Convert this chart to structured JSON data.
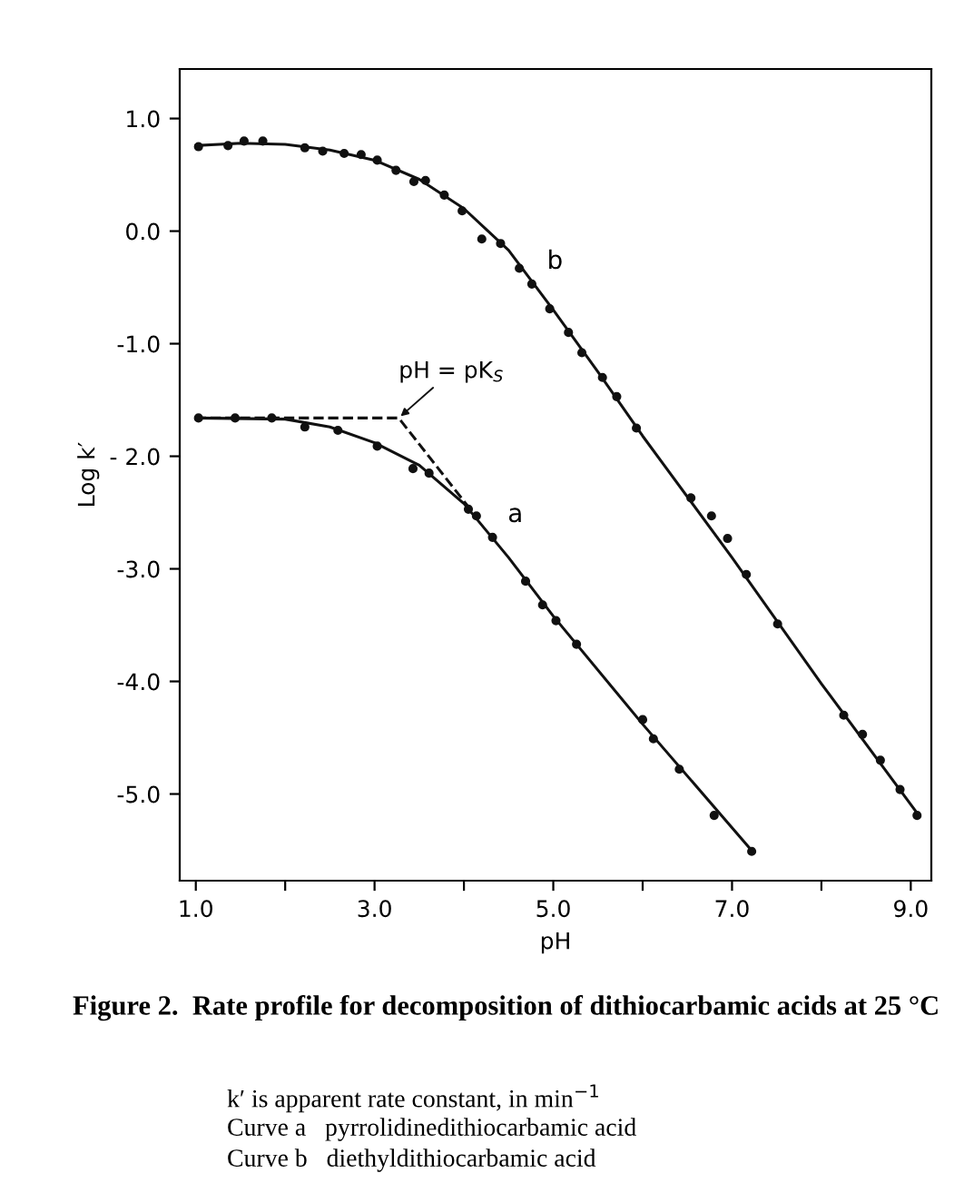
{
  "chart_data": {
    "type": "scatter",
    "title": "Figure 2.  Rate profile for decomposition of dithiocarbamic acids at 25 °C",
    "xlabel": "pH",
    "ylabel": "Log k′",
    "xlim": [
      0.82,
      9.23
    ],
    "ylim": [
      -5.77,
      1.44
    ],
    "xticks": [
      {
        "value": 1,
        "label": "1.0"
      },
      {
        "value": 2,
        "label": null
      },
      {
        "value": 3,
        "label": "3.0"
      },
      {
        "value": 4,
        "label": null
      },
      {
        "value": 5,
        "label": "5.0"
      },
      {
        "value": 6,
        "label": null
      },
      {
        "value": 7,
        "label": "7.0"
      },
      {
        "value": 8,
        "label": null
      },
      {
        "value": 9,
        "label": "9.0"
      }
    ],
    "yticks": [
      {
        "value": 1,
        "label": "1.0"
      },
      {
        "value": 0,
        "label": "0.0"
      },
      {
        "value": -1,
        "label": "-1.0"
      },
      {
        "value": -2,
        "label": "- 2.0"
      },
      {
        "value": -3,
        "label": "-3.0"
      },
      {
        "value": -4,
        "label": "-4.0"
      },
      {
        "value": -5,
        "label": "-5.0"
      }
    ],
    "grid": false,
    "series": [
      {
        "name": "b",
        "marker": "circle",
        "color": "#111111",
        "x": [
          1.03,
          1.36,
          1.54,
          1.75,
          2.22,
          2.42,
          2.66,
          2.85,
          3.03,
          3.24,
          3.44,
          3.57,
          3.78,
          3.98,
          4.2,
          4.41,
          4.62,
          4.76,
          4.96,
          5.17,
          5.32,
          5.55,
          5.71,
          5.93,
          6.54,
          6.77,
          6.95,
          7.16,
          7.51,
          8.25,
          8.46,
          8.66,
          8.88,
          9.07
        ],
        "values": [
          0.75,
          0.76,
          0.8,
          0.8,
          0.74,
          0.71,
          0.69,
          0.68,
          0.63,
          0.54,
          0.44,
          0.45,
          0.32,
          0.18,
          -0.07,
          -0.11,
          -0.33,
          -0.47,
          -0.69,
          -0.9,
          -1.08,
          -1.3,
          -1.47,
          -1.75,
          -2.37,
          -2.53,
          -2.73,
          -3.05,
          -3.49,
          -4.3,
          -4.47,
          -4.7,
          -4.96,
          -5.19
        ]
      },
      {
        "name": "a",
        "marker": "circle",
        "color": "#111111",
        "x": [
          1.03,
          1.44,
          1.85,
          2.22,
          2.59,
          3.03,
          3.43,
          3.61,
          4.05,
          4.14,
          4.32,
          4.69,
          4.88,
          5.03,
          5.26,
          6.0,
          6.12,
          6.41,
          6.8,
          7.22
        ],
        "values": [
          -1.66,
          -1.66,
          -1.66,
          -1.74,
          -1.77,
          -1.91,
          -2.11,
          -2.15,
          -2.47,
          -2.53,
          -2.72,
          -3.11,
          -3.32,
          -3.46,
          -3.67,
          -4.34,
          -4.51,
          -4.78,
          -5.19,
          -5.51
        ]
      },
      {
        "type": "line",
        "marker": "none",
        "color": "#111111",
        "line_style": "solid",
        "x": [
          1.0,
          1.5,
          2.0,
          2.5,
          3.0,
          3.5,
          4.0,
          4.5,
          5.0,
          5.5,
          6.0,
          7.0,
          8.0,
          9.1
        ],
        "values": [
          0.76,
          0.78,
          0.77,
          0.72,
          0.63,
          0.46,
          0.2,
          -0.17,
          -0.7,
          -1.25,
          -1.82,
          -2.9,
          -4.02,
          -5.2
        ]
      },
      {
        "type": "line",
        "marker": "none",
        "color": "#111111",
        "line_style": "solid",
        "x": [
          1.0,
          2.0,
          2.5,
          3.0,
          3.5,
          4.0,
          4.5,
          5.0,
          6.0,
          7.24
        ],
        "values": [
          -1.66,
          -1.67,
          -1.74,
          -1.88,
          -2.08,
          -2.42,
          -2.9,
          -3.42,
          -4.38,
          -5.52
        ]
      },
      {
        "type": "line",
        "marker": "none",
        "color": "#111111",
        "line_style": "dashed",
        "x": [
          1.0,
          3.27,
          4.1
        ],
        "values": [
          -1.66,
          -1.66,
          -2.5
        ]
      }
    ],
    "annotations": [
      {
        "text": "pH = pK$_{S}$",
        "x": 3.27,
        "y": -1.66
      },
      "k′ is apparent rate constant, in min$^{−1}$",
      "Curve a   pyrrolidinedithiocarbamic acid",
      "Curve b   diethyldithiocarbamic acid"
    ]
  }
}
